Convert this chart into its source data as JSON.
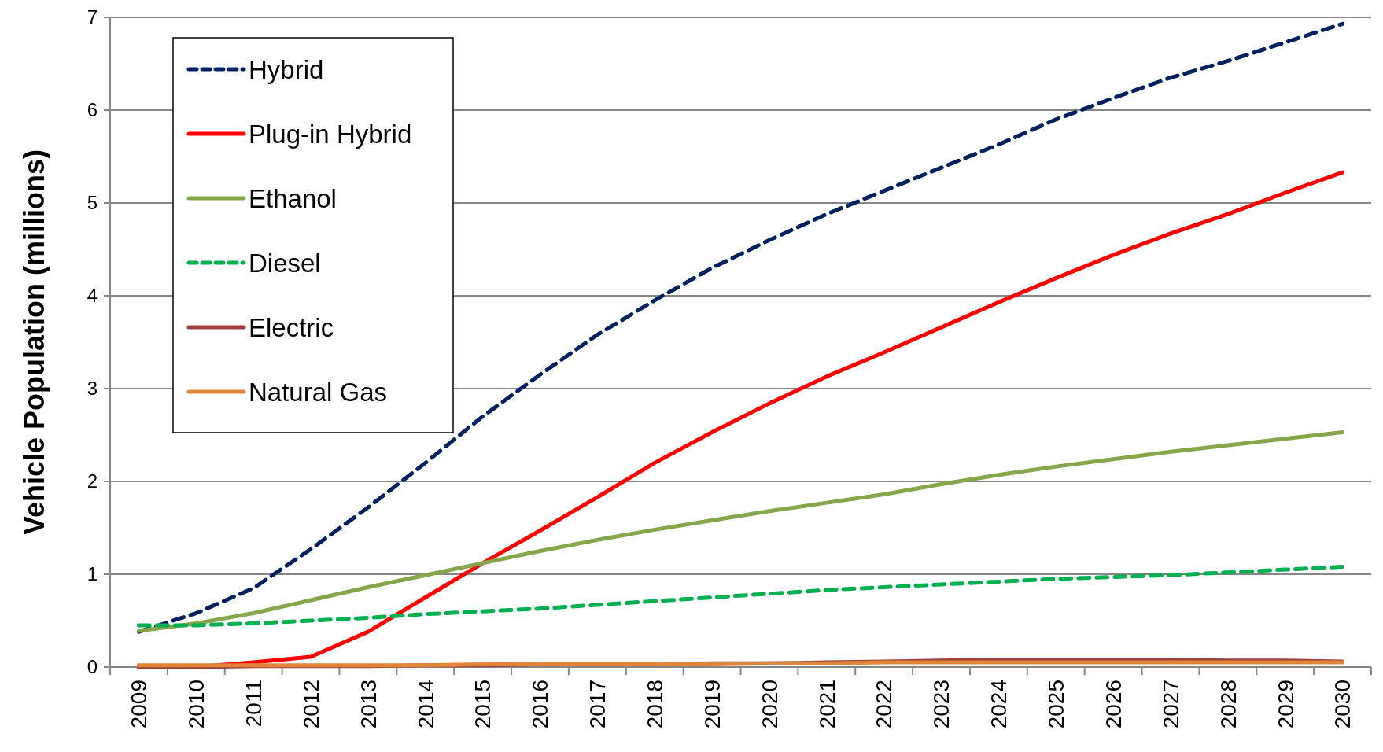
{
  "chart_data": {
    "type": "line",
    "ylabel": "Vehicle Population (millions)",
    "categories": [
      "2009",
      "2010",
      "2011",
      "2012",
      "2013",
      "2014",
      "2015",
      "2016",
      "2017",
      "2018",
      "2019",
      "2020",
      "2021",
      "2022",
      "2023",
      "2024",
      "2025",
      "2026",
      "2027",
      "2028",
      "2029",
      "2030"
    ],
    "ylim": [
      0,
      7
    ],
    "yticks": [
      0,
      1,
      2,
      3,
      4,
      5,
      6,
      7
    ],
    "grid": "y",
    "legend": "top left",
    "marker": "none",
    "series": [
      {
        "name": "Hybrid",
        "color": "#002060",
        "line_style": "dashed",
        "values": [
          0.38,
          0.58,
          0.85,
          1.27,
          1.72,
          2.2,
          2.7,
          3.15,
          3.58,
          3.95,
          4.3,
          4.6,
          4.88,
          5.13,
          5.38,
          5.63,
          5.9,
          6.13,
          6.35,
          6.53,
          6.73,
          6.93
        ]
      },
      {
        "name": "Plug-in Hybrid",
        "color": "#ff0000",
        "line_style": "solid",
        "values": [
          0,
          0,
          0.05,
          0.11,
          0.38,
          0.75,
          1.12,
          1.47,
          1.83,
          2.2,
          2.53,
          2.84,
          3.13,
          3.39,
          3.66,
          3.93,
          4.19,
          4.44,
          4.67,
          4.88,
          5.11,
          5.33
        ]
      },
      {
        "name": "Ethanol",
        "color": "#86a64a",
        "line_style": "solid",
        "values": [
          0.39,
          0.47,
          0.58,
          0.72,
          0.86,
          0.99,
          1.12,
          1.25,
          1.37,
          1.48,
          1.58,
          1.68,
          1.77,
          1.86,
          1.97,
          2.07,
          2.16,
          2.24,
          2.32,
          2.39,
          2.46,
          2.53
        ]
      },
      {
        "name": "Diesel",
        "color": "#00b050",
        "line_style": "dashed",
        "values": [
          0.45,
          0.45,
          0.47,
          0.5,
          0.53,
          0.57,
          0.6,
          0.63,
          0.67,
          0.71,
          0.75,
          0.79,
          0.83,
          0.86,
          0.89,
          0.92,
          0.95,
          0.97,
          0.99,
          1.02,
          1.05,
          1.08
        ]
      },
      {
        "name": "Electric",
        "color": "#a0403c",
        "line_style": "solid",
        "values": [
          0,
          0,
          0.01,
          0.01,
          0.01,
          0.02,
          0.02,
          0.03,
          0.03,
          0.03,
          0.04,
          0.04,
          0.05,
          0.06,
          0.07,
          0.08,
          0.08,
          0.08,
          0.08,
          0.07,
          0.07,
          0.06
        ]
      },
      {
        "name": "Natural Gas",
        "color": "#e0853a",
        "line_style": "solid",
        "values": [
          0.02,
          0.02,
          0.02,
          0.02,
          0.02,
          0.02,
          0.03,
          0.03,
          0.03,
          0.03,
          0.03,
          0.04,
          0.04,
          0.05,
          0.05,
          0.05,
          0.05,
          0.05,
          0.05,
          0.05,
          0.05,
          0.05
        ]
      }
    ]
  }
}
